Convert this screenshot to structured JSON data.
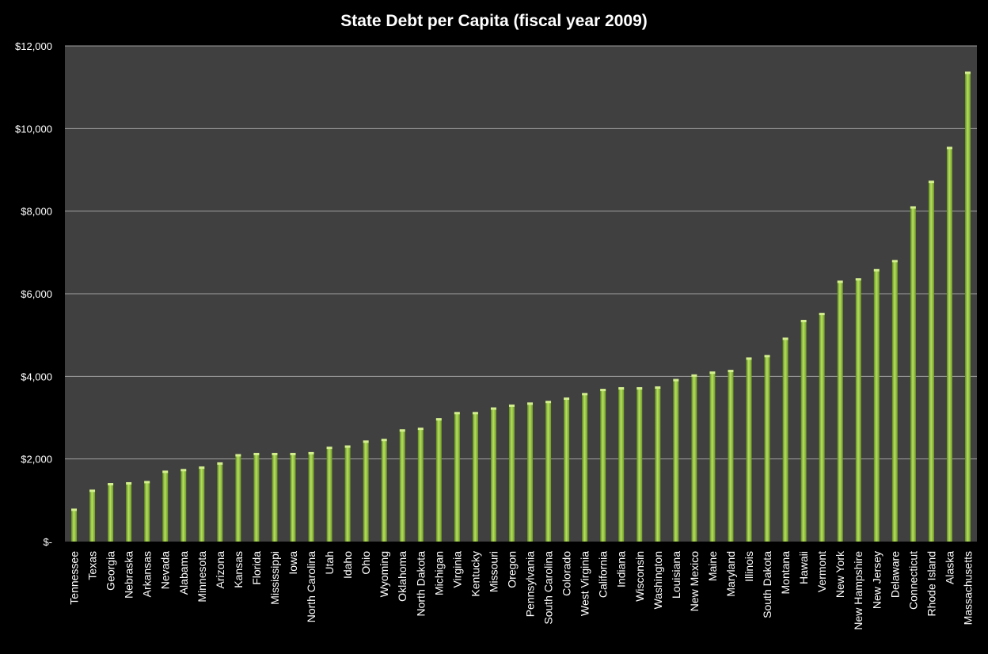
{
  "chart_data": {
    "type": "bar",
    "title": "State Debt per Capita (fiscal year 2009)",
    "xlabel": "",
    "ylabel": "",
    "ylim": [
      0,
      12000
    ],
    "yticks": [
      0,
      2000,
      4000,
      6000,
      8000,
      10000,
      12000
    ],
    "ytick_labels": [
      "$-",
      "$2,000",
      "$4,000",
      "$6,000",
      "$8,000",
      "$10,000",
      "$12,000"
    ],
    "grid": true,
    "legend": "none",
    "colors": {
      "plot_bg": "#404040",
      "page_bg": "#000000",
      "bar": "#8fc43a",
      "grid": "#a0a0a0",
      "text": "#ffffff"
    },
    "categories": [
      "Tennessee",
      "Texas",
      "Georgia",
      "Nebraska",
      "Arkansas",
      "Nevada",
      "Alabama",
      "Minnesota",
      "Arizona",
      "Kansas",
      "Florida",
      "Mississippi",
      "Iowa",
      "North Carolina",
      "Utah",
      "Idaho",
      "Ohio",
      "Wyoming",
      "Oklahoma",
      "North Dakota",
      "Michigan",
      "Virginia",
      "Kentucky",
      "Missouri",
      "Oregon",
      "Pennsylvania",
      "South Carolina",
      "Colorado",
      "West Virginia",
      "California",
      "Indiana",
      "Wisconsin",
      "Washington",
      "Louisiana",
      "New Mexico",
      "Maine",
      "Maryland",
      "Illinois",
      "South Dakota",
      "Montana",
      "Hawaii",
      "Vermont",
      "New York",
      "New Hampshire",
      "New Jersey",
      "Delaware",
      "Connecticut",
      "Rhode Island",
      "Alaska",
      "Massachusetts"
    ],
    "values": [
      760,
      1220,
      1380,
      1400,
      1430,
      1680,
      1720,
      1780,
      1880,
      2080,
      2110,
      2110,
      2110,
      2130,
      2260,
      2290,
      2410,
      2450,
      2680,
      2720,
      2950,
      3100,
      3100,
      3210,
      3280,
      3330,
      3370,
      3450,
      3560,
      3660,
      3700,
      3700,
      3720,
      3900,
      4010,
      4080,
      4120,
      4420,
      4480,
      4900,
      5330,
      5500,
      6280,
      6340,
      6560,
      6780,
      8080,
      8700,
      9520,
      11340
    ]
  }
}
